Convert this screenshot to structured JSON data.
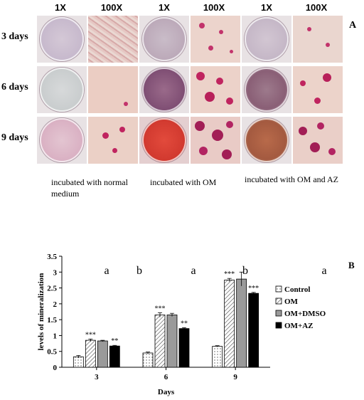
{
  "panelA": {
    "letter": "A",
    "column_headers": [
      "1X",
      "100X",
      "1X",
      "100X",
      "1X",
      "100X"
    ],
    "row_labels": [
      "3 days",
      "6 days",
      "9 days"
    ],
    "captions": [
      "incubated with normal medium",
      "incubated with OM",
      "incubated with OM and AZ"
    ]
  },
  "chart_data": {
    "type": "bar",
    "panel_letter": "B",
    "categories": [
      "3",
      "6",
      "9"
    ],
    "xlabel": "Days",
    "ylabel": "levels of mineralization",
    "ylim": [
      0,
      3.5
    ],
    "yticks": [
      "0",
      "0.5",
      "1",
      "1.5",
      "2",
      "2.5",
      "3",
      "3.5"
    ],
    "grid": false,
    "legend_position": "right",
    "series": [
      {
        "name": "Control",
        "values": [
          0.33,
          0.45,
          0.66
        ],
        "errors": [
          0.04,
          0.03,
          0.02
        ],
        "color": "#ffffff",
        "pattern": "dots"
      },
      {
        "name": "OM",
        "values": [
          0.85,
          1.65,
          2.75
        ],
        "errors": [
          0.04,
          0.07,
          0.05
        ],
        "color": "#ffffff",
        "pattern": "hatch"
      },
      {
        "name": "OM+DMSO",
        "values": [
          0.83,
          1.65,
          2.78
        ],
        "errors": [
          0.02,
          0.05,
          0.22
        ],
        "color": "#9a9a9a",
        "pattern": "solid"
      },
      {
        "name": "OM+AZ",
        "values": [
          0.67,
          1.22,
          2.33
        ],
        "errors": [
          0.02,
          0.03,
          0.03
        ],
        "color": "#000000",
        "pattern": "solid"
      }
    ],
    "annotations": {
      "significance": [
        {
          "category": 0,
          "series": 1,
          "text": "***"
        },
        {
          "category": 0,
          "series": 3,
          "text": "**"
        },
        {
          "category": 1,
          "series": 1,
          "text": "***"
        },
        {
          "category": 1,
          "series": 3,
          "text": "**"
        },
        {
          "category": 2,
          "series": 1,
          "text": "***"
        },
        {
          "category": 2,
          "series": 3,
          "text": "***"
        }
      ],
      "letters": [
        "a",
        "b",
        "a",
        "b",
        "a"
      ]
    }
  }
}
